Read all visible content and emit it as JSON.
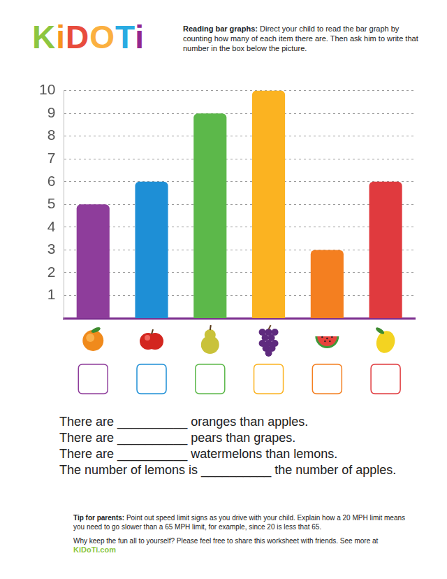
{
  "header": {
    "logo": "KiDOTi",
    "instructions_title": "Reading bar graphs:",
    "instructions": "Direct your child to read the bar graph by counting how many of each item there are.  Then ask him to write that number in the box below the picture."
  },
  "chart_data": {
    "type": "bar",
    "categories": [
      null,
      null,
      null,
      null,
      null,
      null
    ],
    "values": [
      5,
      6,
      9,
      10,
      3,
      6
    ],
    "colors": [
      "#8e3d9b",
      "#1e8fd6",
      "#5cb84a",
      "#fbb321",
      "#f47f20",
      "#e03a3e"
    ],
    "ylim": [
      0,
      10
    ],
    "yticks": [
      1,
      2,
      3,
      4,
      5,
      6,
      7,
      8,
      9,
      10
    ],
    "grid": true,
    "tick_labels": "y"
  },
  "questions": [
    "There are __________ oranges than apples.",
    "There are __________ pears than grapes.",
    "There are __________ watermelons than lemons.",
    "The number of lemons is __________ the number of apples."
  ],
  "footer": {
    "tip_title": "Tip for parents:",
    "tip": "Point out speed limit signs as you drive with your child.  Explain how a 20 MPH limit means you need to go slower than a 65 MPH limit, for example, since 20 is less that 65.",
    "share": "Why keep the fun all to yourself? Please feel free to share this worksheet with friends. See more at",
    "site": "KiDoTi.com"
  }
}
